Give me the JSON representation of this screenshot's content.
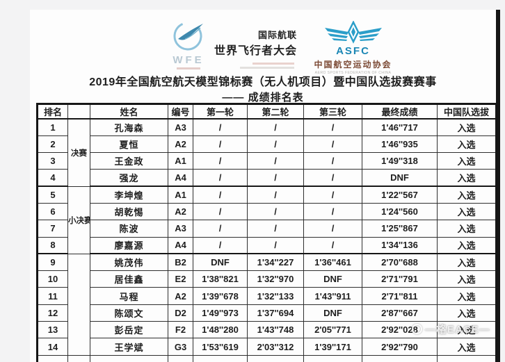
{
  "header": {
    "wfe_logo": {
      "acronym": "WFE",
      "org_line1": "国际航联",
      "org_line2": "世界飞行者大会"
    },
    "asfc_logo": {
      "acronym": "ASFC",
      "org_cn": "中国航空运动协会",
      "org_en": "AERO SPORTS FEDERATION OF CHINA"
    }
  },
  "title": "2019年全国航空航天模型锦标赛（无人机项目）暨中国队选拔赛赛事",
  "subtitle": "—— 成绩排名表",
  "table": {
    "columns": [
      "排名",
      "",
      "姓名",
      "编号",
      "第一轮",
      "第二轮",
      "第三轮",
      "最终成绩",
      "中国队选拔"
    ],
    "groups": [
      {
        "label": "决赛",
        "rows": [
          {
            "rank": "1",
            "name": "孔海森",
            "id": "A3",
            "r1": "/",
            "r2": "/",
            "r3": "/",
            "final": "1'46''717",
            "selection": "入选"
          },
          {
            "rank": "2",
            "name": "夏恒",
            "id": "A2",
            "r1": "/",
            "r2": "/",
            "r3": "/",
            "final": "1'46''935",
            "selection": "入选"
          },
          {
            "rank": "3",
            "name": "王金政",
            "id": "A1",
            "r1": "/",
            "r2": "/",
            "r3": "/",
            "final": "1'49''318",
            "selection": "入选"
          },
          {
            "rank": "4",
            "name": "强龙",
            "id": "A4",
            "r1": "/",
            "r2": "/",
            "r3": "/",
            "final": "DNF",
            "selection": "入选"
          }
        ]
      },
      {
        "label": "小决赛",
        "rows": [
          {
            "rank": "5",
            "name": "李坤煌",
            "id": "A1",
            "r1": "/",
            "r2": "/",
            "r3": "/",
            "final": "1'22''567",
            "selection": "入选"
          },
          {
            "rank": "6",
            "name": "胡乾惕",
            "id": "A2",
            "r1": "/",
            "r2": "/",
            "r3": "/",
            "final": "1'24''560",
            "selection": "入选"
          },
          {
            "rank": "7",
            "name": "陈波",
            "id": "A3",
            "r1": "/",
            "r2": "/",
            "r3": "/",
            "final": "1'25''867",
            "selection": "入选"
          },
          {
            "rank": "8",
            "name": "廖嘉源",
            "id": "A4",
            "r1": "/",
            "r2": "/",
            "r3": "/",
            "final": "1'34''136",
            "selection": "入选"
          }
        ]
      },
      {
        "label": "",
        "rows": [
          {
            "rank": "9",
            "name": "姚茂伟",
            "id": "B2",
            "r1": "DNF",
            "r2": "1'34''227",
            "r3": "1'36''461",
            "final": "2'70''688",
            "selection": "入选"
          },
          {
            "rank": "10",
            "name": "居佳鑫",
            "id": "E2",
            "r1": "1'38''821",
            "r2": "1'32''970",
            "r3": "DNF",
            "final": "2'71''791",
            "selection": "入选"
          },
          {
            "rank": "11",
            "name": "马程",
            "id": "A2",
            "r1": "1'39''678",
            "r2": "1'32''133",
            "r3": "1'43''911",
            "final": "2'71''811",
            "selection": "入选"
          },
          {
            "rank": "12",
            "name": "陈颂文",
            "id": "D2",
            "r1": "1'49''973",
            "r2": "1'37''694",
            "r3": "DNF",
            "final": "2'87''667",
            "selection": "入选"
          },
          {
            "rank": "13",
            "name": "彭岳定",
            "id": "F2",
            "r1": "1'48''280",
            "r2": "1'43''748",
            "r3": "2'05''771",
            "final": "2'92''028",
            "selection": "入选"
          },
          {
            "rank": "14",
            "name": "王学斌",
            "id": "G3",
            "r1": "1'53''619",
            "r2": "2'03''312",
            "r3": "1'39''171",
            "final": "2'92''790",
            "selection": "入选"
          }
        ]
      }
    ]
  },
  "watermark": {
    "text": "—格EACE—"
  },
  "colors": {
    "background": "#f3f3f4",
    "document": "#fdfdfd",
    "table_border": "#161616",
    "asfc_blue": "#2b9ec9",
    "asfc_maroon": "#7c4a35",
    "wfe_light_blue": "#8fc3dc"
  }
}
